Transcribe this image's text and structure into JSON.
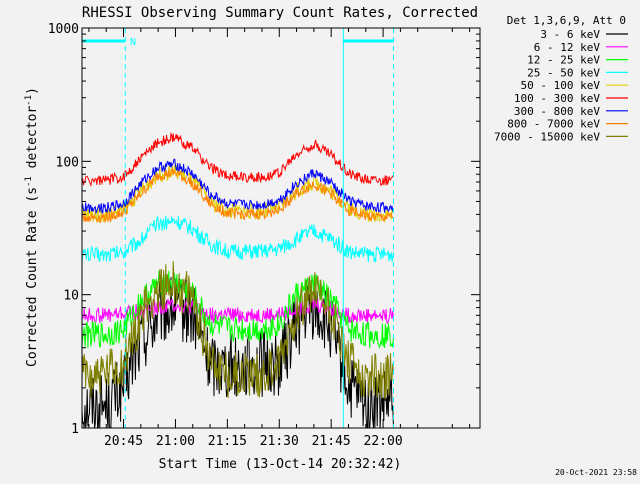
{
  "chart_data": {
    "type": "line",
    "title": "RHESSI Observing Summary Count Rates, Corrected",
    "xlabel": "Start Time (13-Oct-14 20:32:42)",
    "ylabel": "Corrected Count Rate (s",
    "ylabel_sup1": "-1",
    "ylabel_mid": " detector",
    "ylabel_sup2": "-1",
    "ylabel_end": ")",
    "y_scale": "log",
    "ylim": [
      1,
      1000
    ],
    "y_ticks": [
      {
        "value": 1,
        "label": "1"
      },
      {
        "value": 10,
        "label": "10"
      },
      {
        "value": 100,
        "label": "100"
      },
      {
        "value": 1000,
        "label": "1000"
      }
    ],
    "x_unit": "minutes of day",
    "xlim": [
      1233,
      1348
    ],
    "x_ticks": [
      {
        "value": 1245,
        "label": "20:45"
      },
      {
        "value": 1260,
        "label": "21:00"
      },
      {
        "value": 1275,
        "label": "21:15"
      },
      {
        "value": 1290,
        "label": "21:30"
      },
      {
        "value": 1305,
        "label": "21:45"
      },
      {
        "value": 1320,
        "label": "22:00"
      }
    ],
    "legend": {
      "placement": "top-right-outside",
      "header": "Det 1,3,6,9, Att 0"
    },
    "series": [
      {
        "name": "3 - 6 keV",
        "color": "#000000",
        "x": [
          1233,
          1240,
          1245,
          1250,
          1255,
          1260,
          1265,
          1270,
          1275,
          1280,
          1285,
          1290,
          1295,
          1300,
          1305,
          1310,
          1315,
          1320,
          1323
        ],
        "values": [
          1.5,
          1.5,
          2.0,
          4.5,
          7.0,
          8.0,
          7.0,
          3.0,
          3.0,
          3.0,
          3.0,
          3.0,
          6.0,
          8.0,
          5.5,
          2.0,
          1.5,
          1.5,
          1.5
        ]
      },
      {
        "name": "6 - 12 keV",
        "color": "#ff00ff",
        "x": [
          1233,
          1240,
          1245,
          1250,
          1255,
          1260,
          1265,
          1270,
          1275,
          1280,
          1285,
          1290,
          1295,
          1300,
          1305,
          1310,
          1315,
          1320,
          1323
        ],
        "values": [
          7.0,
          7.0,
          7.2,
          7.5,
          8.0,
          8.5,
          8.0,
          7.0,
          7.0,
          7.0,
          7.0,
          7.0,
          7.8,
          8.5,
          7.8,
          7.0,
          7.0,
          7.0,
          7.0
        ]
      },
      {
        "name": "12 - 25 keV",
        "color": "#00ff00",
        "x": [
          1233,
          1240,
          1245,
          1250,
          1255,
          1260,
          1265,
          1270,
          1275,
          1280,
          1285,
          1290,
          1295,
          1300,
          1305,
          1310,
          1315,
          1320,
          1323
        ],
        "values": [
          5.0,
          5.0,
          5.5,
          9.0,
          12.0,
          12.5,
          10.0,
          6.0,
          5.5,
          5.5,
          5.5,
          6.0,
          10.0,
          12.0,
          9.0,
          5.5,
          5.0,
          5.0,
          5.0
        ]
      },
      {
        "name": "25 - 50 keV",
        "color": "#00ffff",
        "x": [
          1233,
          1240,
          1245,
          1250,
          1255,
          1260,
          1265,
          1270,
          1275,
          1280,
          1285,
          1290,
          1295,
          1300,
          1305,
          1310,
          1315,
          1320,
          1323
        ],
        "values": [
          20,
          20,
          21,
          26,
          34,
          36,
          31,
          24,
          21,
          21,
          21,
          22,
          26,
          30,
          26,
          21,
          20,
          20,
          20
        ]
      },
      {
        "name": "50 - 100 keV",
        "color": "#e0d000",
        "x": [
          1233,
          1240,
          1245,
          1250,
          1255,
          1260,
          1265,
          1270,
          1275,
          1280,
          1285,
          1290,
          1295,
          1300,
          1305,
          1310,
          1315,
          1320,
          1323
        ],
        "values": [
          40,
          40,
          43,
          60,
          80,
          85,
          72,
          50,
          43,
          42,
          42,
          45,
          60,
          70,
          60,
          45,
          40,
          40,
          40
        ]
      },
      {
        "name": "100 - 300 keV",
        "color": "#ff0000",
        "x": [
          1233,
          1240,
          1245,
          1250,
          1255,
          1260,
          1265,
          1270,
          1275,
          1280,
          1285,
          1290,
          1295,
          1300,
          1305,
          1310,
          1315,
          1320,
          1323
        ],
        "values": [
          72,
          72,
          76,
          105,
          140,
          150,
          125,
          90,
          78,
          76,
          76,
          82,
          112,
          135,
          112,
          82,
          74,
          72,
          72
        ]
      },
      {
        "name": "300 - 800 keV",
        "color": "#0000ff",
        "x": [
          1233,
          1240,
          1245,
          1250,
          1255,
          1260,
          1265,
          1270,
          1275,
          1280,
          1285,
          1290,
          1295,
          1300,
          1305,
          1310,
          1315,
          1320,
          1323
        ],
        "values": [
          45,
          45,
          48,
          68,
          90,
          95,
          80,
          57,
          48,
          47,
          47,
          51,
          68,
          82,
          68,
          51,
          46,
          45,
          45
        ]
      },
      {
        "name": "800 - 7000 keV",
        "color": "#ff8000",
        "x": [
          1233,
          1240,
          1245,
          1250,
          1255,
          1260,
          1265,
          1270,
          1275,
          1280,
          1285,
          1290,
          1295,
          1300,
          1305,
          1310,
          1315,
          1320,
          1323
        ],
        "values": [
          38,
          38,
          41,
          57,
          78,
          82,
          68,
          48,
          41,
          40,
          40,
          43,
          57,
          68,
          57,
          43,
          39,
          38,
          38
        ]
      },
      {
        "name": "7000 - 15000 keV",
        "color": "#808000",
        "x": [
          1233,
          1240,
          1245,
          1250,
          1255,
          1260,
          1265,
          1270,
          1275,
          1280,
          1285,
          1290,
          1295,
          1300,
          1305,
          1310,
          1315,
          1320,
          1323
        ],
        "values": [
          2.5,
          2.5,
          3.0,
          7.0,
          11.0,
          12.0,
          9.0,
          3.5,
          2.5,
          2.5,
          2.5,
          3.0,
          8.0,
          10.5,
          7.5,
          3.0,
          2.5,
          2.5,
          2.5
        ]
      }
    ],
    "annotations": {
      "night_intervals": [
        [
          1233,
          1245.5
        ],
        [
          1308.5,
          1323
        ]
      ],
      "night_label": "N",
      "night_label_time": 1246,
      "dashed_markers": [
        1245.5,
        1323
      ],
      "solid_markers": [
        1308.5
      ],
      "marker_color": "#00ffff"
    },
    "timestamp": "20-Oct-2021 23:58"
  }
}
